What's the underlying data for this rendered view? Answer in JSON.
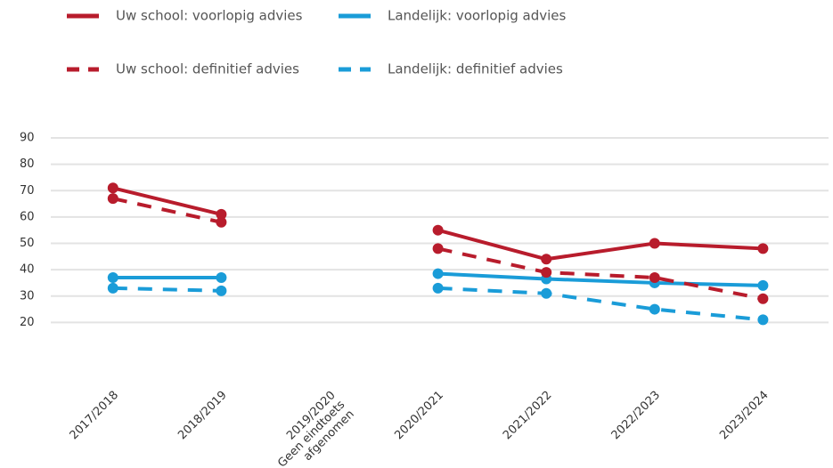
{
  "chart_data": {
    "type": "line",
    "categories": [
      "2017/2018",
      "2018/2019",
      [
        "2019/2020",
        "Geen eindtoets",
        "afgenomen"
      ],
      "2020/2021",
      "2021/2022",
      "2022/2023",
      "2023/2024"
    ],
    "series": [
      {
        "name": "Uw school: voorlopig advies",
        "color": "#b81c2c",
        "dashed": false,
        "values": [
          71,
          61,
          null,
          55,
          44,
          50,
          48
        ]
      },
      {
        "name": "Landelijk: voorlopig advies",
        "color": "#1a9cd8",
        "dashed": false,
        "values": [
          37,
          37,
          null,
          38.5,
          36.5,
          35,
          34
        ]
      },
      {
        "name": "Uw school: definitief advies",
        "color": "#b81c2c",
        "dashed": true,
        "values": [
          67,
          58,
          null,
          48,
          39,
          37,
          29
        ]
      },
      {
        "name": "Landelijk: definitief advies",
        "color": "#1a9cd8",
        "dashed": true,
        "values": [
          33,
          32,
          null,
          33,
          31,
          25,
          21
        ]
      }
    ],
    "ylim": [
      10,
      90
    ],
    "yticks": [
      20,
      30,
      40,
      50,
      60,
      70,
      80,
      90
    ],
    "grid": true
  }
}
